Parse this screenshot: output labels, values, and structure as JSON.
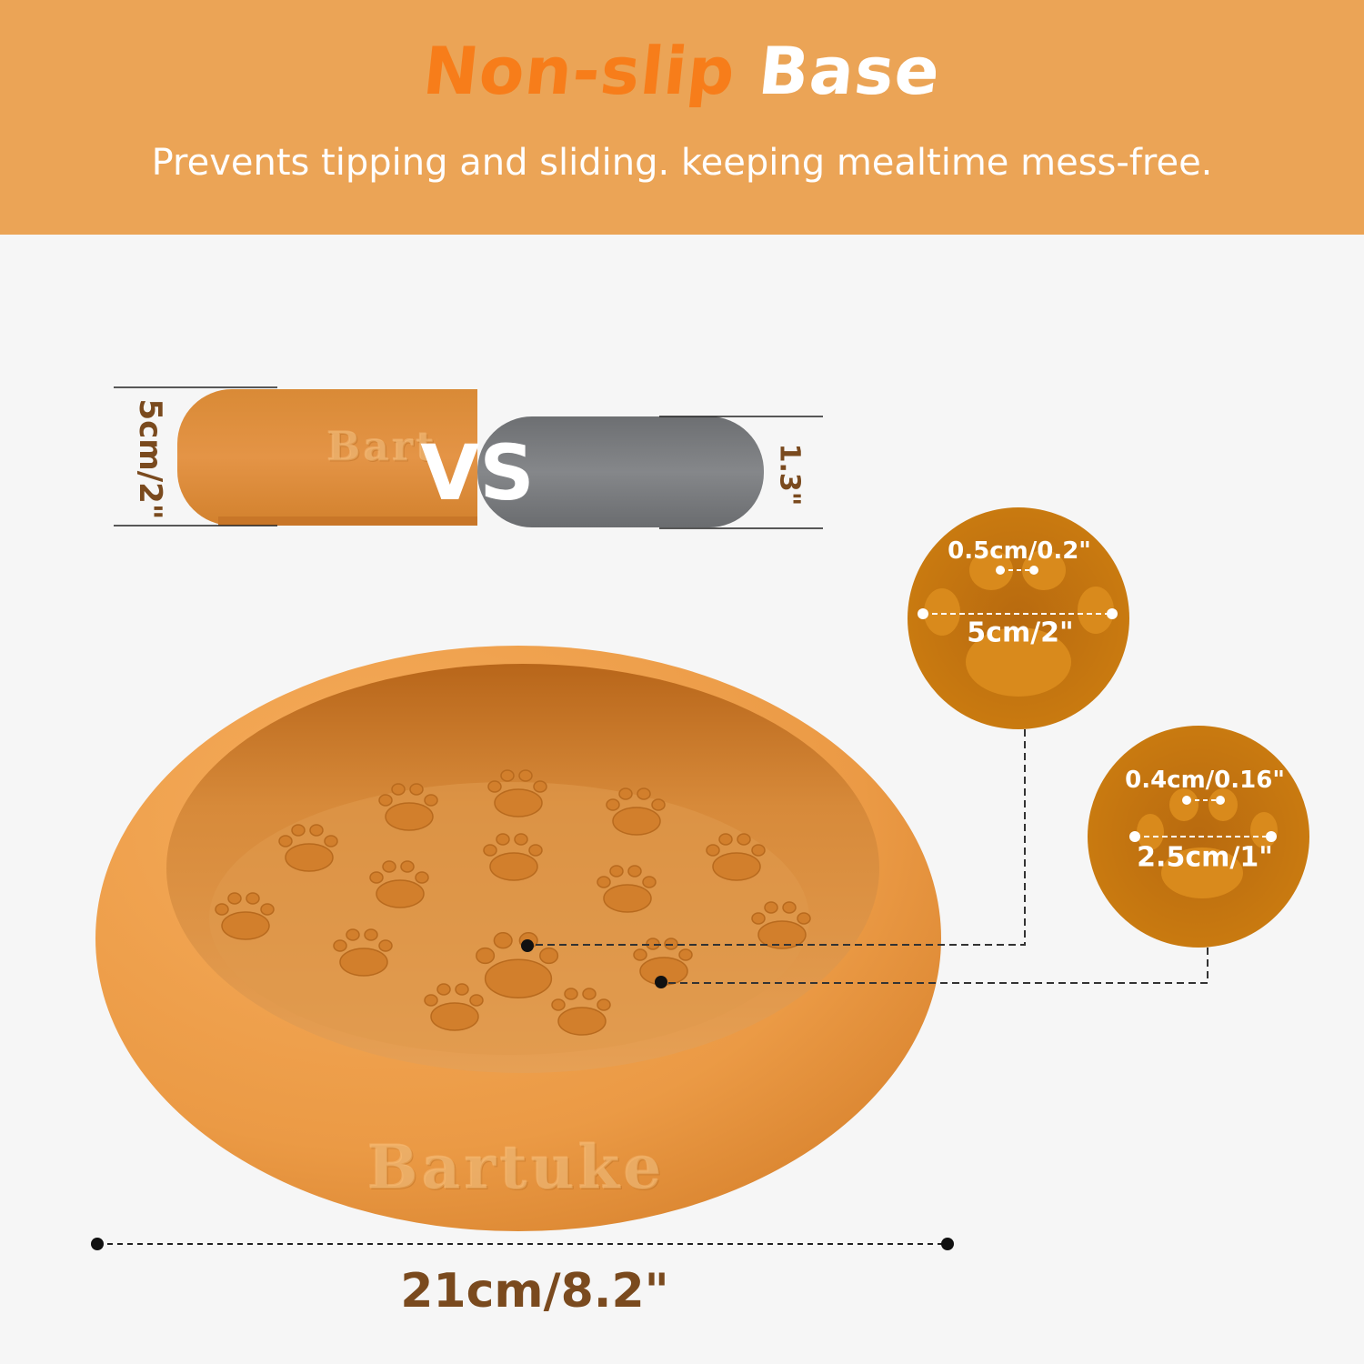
{
  "header": {
    "title_part1": "Non-slip",
    "title_part2": "Base",
    "subtitle": "Prevents tipping and sliding. keeping mealtime mess-free."
  },
  "comparison": {
    "height_label": "5cm/2\"",
    "other_height_label": "1.3\"",
    "vs_label": "VS",
    "brand_text": "Bartuke"
  },
  "bowl": {
    "brand_text": "Bartuke",
    "width_label": "21cm/8.2\""
  },
  "detail_large": {
    "gap_label": "0.5cm/0.2\"",
    "width_label": "5cm/2\""
  },
  "detail_small": {
    "gap_label": "0.4cm/0.16\"",
    "width_label": "2.5cm/1\""
  },
  "colors": {
    "header_bg": "#eba456",
    "title_accent": "#f77d1a",
    "bowl_orange": "#e9963f",
    "compare_gray": "#77797c",
    "dimension_text": "#7a4a1e"
  }
}
